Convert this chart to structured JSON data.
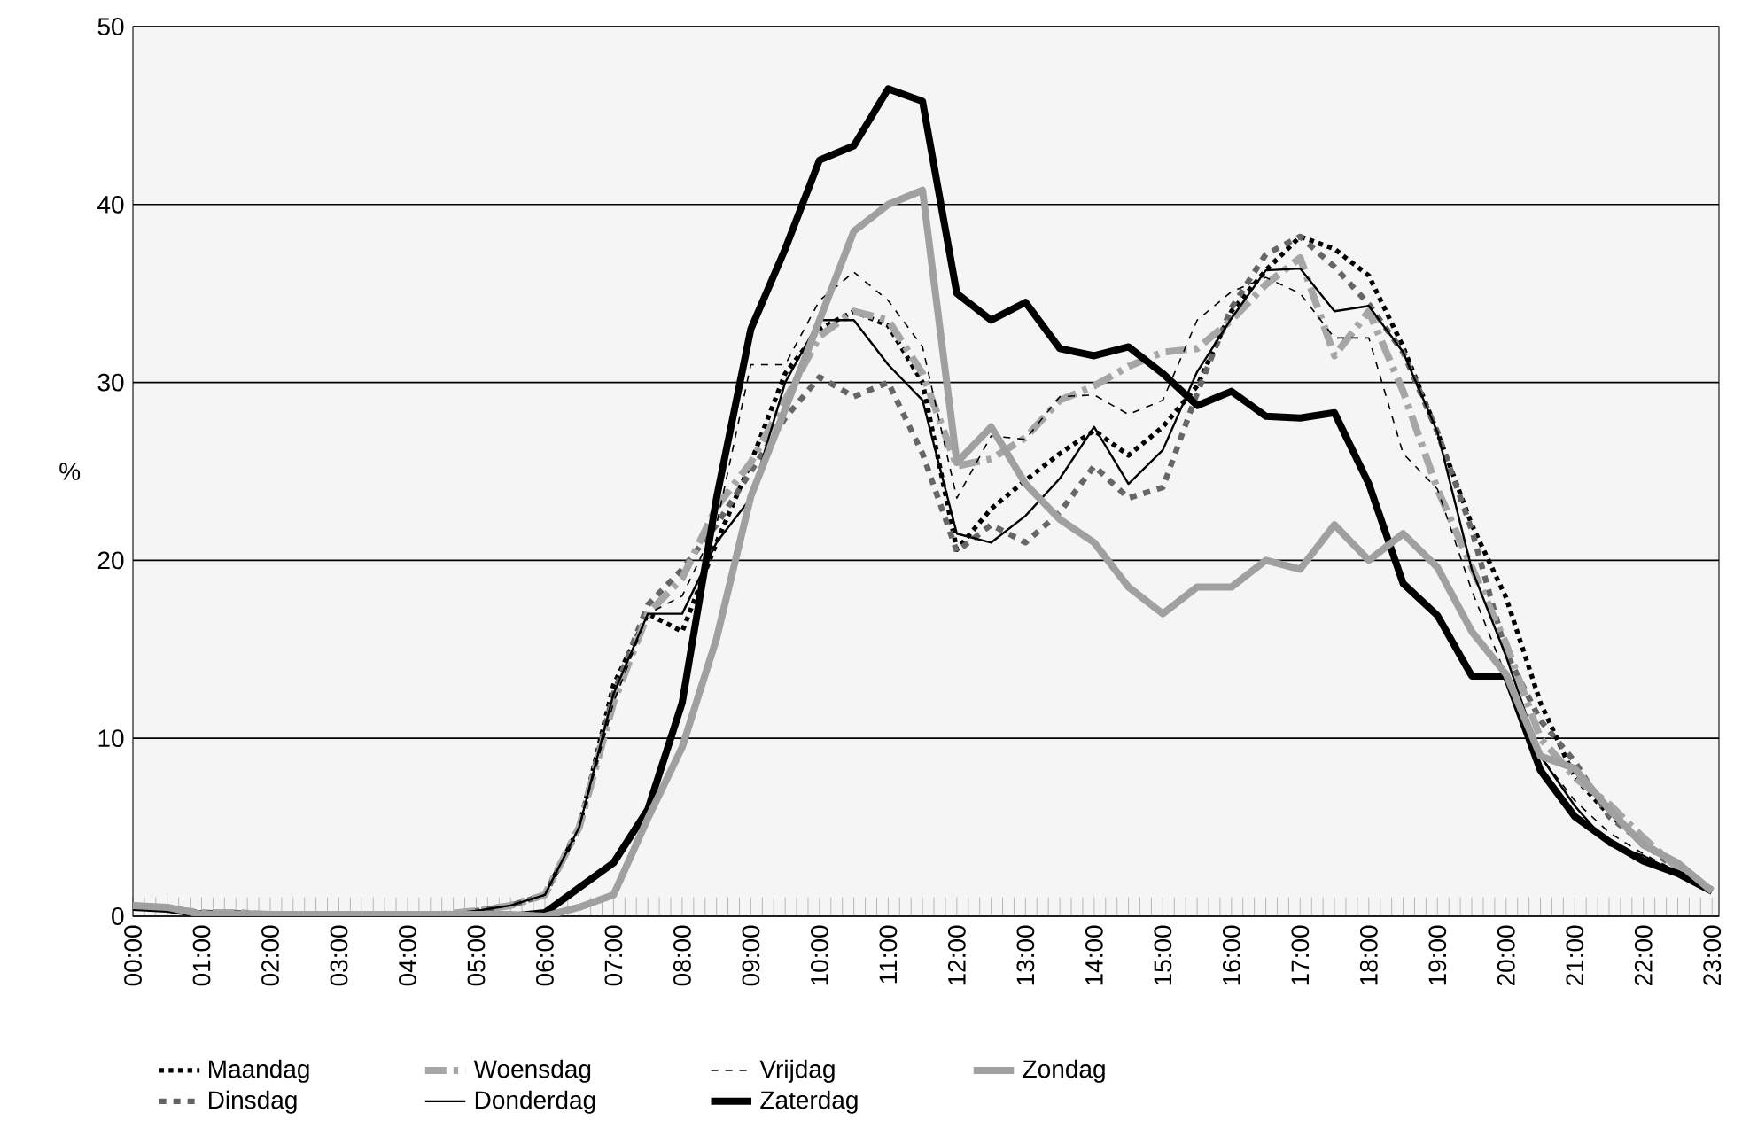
{
  "chart_data": {
    "type": "line",
    "ylabel": "%",
    "x": [
      0,
      0.5,
      1,
      1.5,
      2,
      2.5,
      3,
      3.5,
      4,
      4.5,
      5,
      5.5,
      6,
      6.5,
      7,
      7.5,
      8,
      8.5,
      9,
      9.5,
      10,
      10.5,
      11,
      11.5,
      12,
      12.5,
      13,
      13.5,
      14,
      14.5,
      15,
      15.5,
      16,
      16.5,
      17,
      17.5,
      18,
      18.5,
      19,
      19.5,
      20,
      20.5,
      21,
      21.5,
      22,
      22.5,
      23
    ],
    "xlim": [
      0,
      23.1
    ],
    "xticks": [
      {
        "value": 0,
        "label": "00:00"
      },
      {
        "value": 1,
        "label": "01:00"
      },
      {
        "value": 2,
        "label": "02:00"
      },
      {
        "value": 3,
        "label": "03:00"
      },
      {
        "value": 4,
        "label": "04:00"
      },
      {
        "value": 5,
        "label": "05:00"
      },
      {
        "value": 6,
        "label": "06:00"
      },
      {
        "value": 7,
        "label": "07:00"
      },
      {
        "value": 8,
        "label": "08:00"
      },
      {
        "value": 9,
        "label": "09:00"
      },
      {
        "value": 10,
        "label": "10:00"
      },
      {
        "value": 11,
        "label": "11:00"
      },
      {
        "value": 12,
        "label": "12:00"
      },
      {
        "value": 13,
        "label": "13:00"
      },
      {
        "value": 14,
        "label": "14:00"
      },
      {
        "value": 15,
        "label": "15:00"
      },
      {
        "value": 16,
        "label": "16:00"
      },
      {
        "value": 17,
        "label": "17:00"
      },
      {
        "value": 18,
        "label": "18:00"
      },
      {
        "value": 19,
        "label": "19:00"
      },
      {
        "value": 20,
        "label": "20:00"
      },
      {
        "value": 21,
        "label": "21:00"
      },
      {
        "value": 22,
        "label": "22:00"
      },
      {
        "value": 23,
        "label": "23:00"
      }
    ],
    "ylim": [
      0,
      50
    ],
    "yticks": [
      0,
      10,
      20,
      30,
      40,
      50
    ],
    "grid": "y",
    "legend": "bottom",
    "series": [
      {
        "name": "Maandag",
        "color": "#000000",
        "line_style": "dotted",
        "values": [
          0.6,
          0.4,
          0.2,
          0.2,
          0.1,
          0.1,
          0.1,
          0.1,
          0.1,
          0.1,
          0.3,
          0.6,
          1.2,
          5,
          13,
          17,
          16,
          21,
          25.5,
          30.5,
          33,
          34,
          33.2,
          30,
          20.6,
          22.9,
          24.5,
          26,
          27.3,
          25.9,
          27.5,
          29.8,
          34,
          36.3,
          38.2,
          37.5,
          36,
          32,
          27.2,
          22,
          17.9,
          12,
          7.8,
          5.7,
          4.2,
          2.8,
          1.4
        ]
      },
      {
        "name": "Dinsdag",
        "color": "#666666",
        "line_style": "dashed",
        "values": [
          0.6,
          0.4,
          0.2,
          0.2,
          0.1,
          0.1,
          0.1,
          0.1,
          0.1,
          0.1,
          0.3,
          0.6,
          1.2,
          5,
          12.5,
          17.5,
          19.5,
          22,
          25,
          28,
          30.3,
          29.2,
          30,
          26,
          20.5,
          22,
          21,
          22.7,
          25.3,
          23.5,
          24.1,
          29.4,
          34.2,
          37.2,
          38.2,
          36.5,
          34.4,
          31.7,
          27.2,
          21.7,
          14.8,
          11,
          8.7,
          5.6,
          4.1,
          2.6,
          1.5
        ]
      },
      {
        "name": "Woensdag",
        "color": "#a6a6a6",
        "line_style": "dashdot",
        "values": [
          0.6,
          0.4,
          0.2,
          0.2,
          0.1,
          0.1,
          0.1,
          0.1,
          0.1,
          0.1,
          0.3,
          0.6,
          1.2,
          5,
          12,
          17,
          19,
          23,
          25.5,
          29,
          32.6,
          34,
          33.5,
          30.5,
          25.3,
          25.7,
          26.9,
          29,
          29.8,
          30.9,
          31.7,
          31.9,
          33.5,
          35.5,
          37,
          31.5,
          34,
          29.5,
          24,
          19.6,
          15.3,
          10,
          7.8,
          6.3,
          4.4,
          2.7,
          1.4
        ]
      },
      {
        "name": "Donderdag",
        "color": "#000000",
        "line_style": "solid",
        "values": [
          0.6,
          0.4,
          0.2,
          0.2,
          0.1,
          0.1,
          0.1,
          0.1,
          0.1,
          0.1,
          0.3,
          0.6,
          1.2,
          5,
          12.5,
          17,
          17,
          21,
          23.5,
          30,
          33.5,
          33.5,
          31,
          29,
          21.5,
          21,
          22.5,
          24.6,
          27.5,
          24.3,
          26.2,
          30.6,
          33.6,
          36.3,
          36.4,
          34,
          34.3,
          31.7,
          27.2,
          19.5,
          14.6,
          9,
          6.2,
          4,
          3.4,
          2.4,
          1.4
        ]
      },
      {
        "name": "Vrijdag",
        "color": "#000000",
        "line_style": "dashed",
        "values": [
          0.6,
          0.4,
          0.2,
          0.2,
          0.1,
          0.1,
          0.1,
          0.1,
          0.1,
          0.1,
          0.3,
          0.6,
          1.2,
          5,
          12,
          17,
          18,
          22,
          31,
          31,
          34.6,
          36.2,
          34.6,
          32,
          23.5,
          27,
          26.8,
          29.2,
          29.3,
          28.2,
          29,
          33.5,
          35.1,
          35.9,
          35,
          32.5,
          32.5,
          26,
          24,
          18.3,
          13.5,
          9,
          6.5,
          4.7,
          3.5,
          2.5,
          1.4
        ]
      },
      {
        "name": "Zaterdag",
        "color": "#000000",
        "line_style": "solid",
        "values": [
          0.5,
          0.4,
          0.1,
          0.1,
          0.1,
          0,
          0,
          0,
          0,
          0,
          0,
          0,
          0.2,
          1.6,
          3,
          6,
          12,
          23.5,
          33,
          37.5,
          42.5,
          43.3,
          46.5,
          45.8,
          35,
          33.5,
          34.5,
          31.9,
          31.5,
          32,
          30.5,
          28.7,
          29.5,
          28.1,
          28,
          28.3,
          24.3,
          18.7,
          16.9,
          13.5,
          13.5,
          8.2,
          5.6,
          4.2,
          3.1,
          2.4,
          1.4
        ]
      },
      {
        "name": "Zondag",
        "color": "#a0a0a0",
        "line_style": "solid",
        "values": [
          0.6,
          0.5,
          0.1,
          0.1,
          0.1,
          0.1,
          0.1,
          0.1,
          0.1,
          0.1,
          0.1,
          0.1,
          0,
          0.5,
          1.2,
          5.5,
          9.5,
          15.6,
          23.6,
          28.5,
          33.5,
          38.5,
          40,
          40.8,
          25.5,
          27.5,
          24.3,
          22.3,
          21,
          18.5,
          17,
          18.5,
          18.5,
          20,
          19.5,
          22,
          20,
          21.5,
          19.6,
          16,
          13.6,
          9,
          8.3,
          6,
          4,
          3,
          1.4
        ]
      }
    ]
  }
}
